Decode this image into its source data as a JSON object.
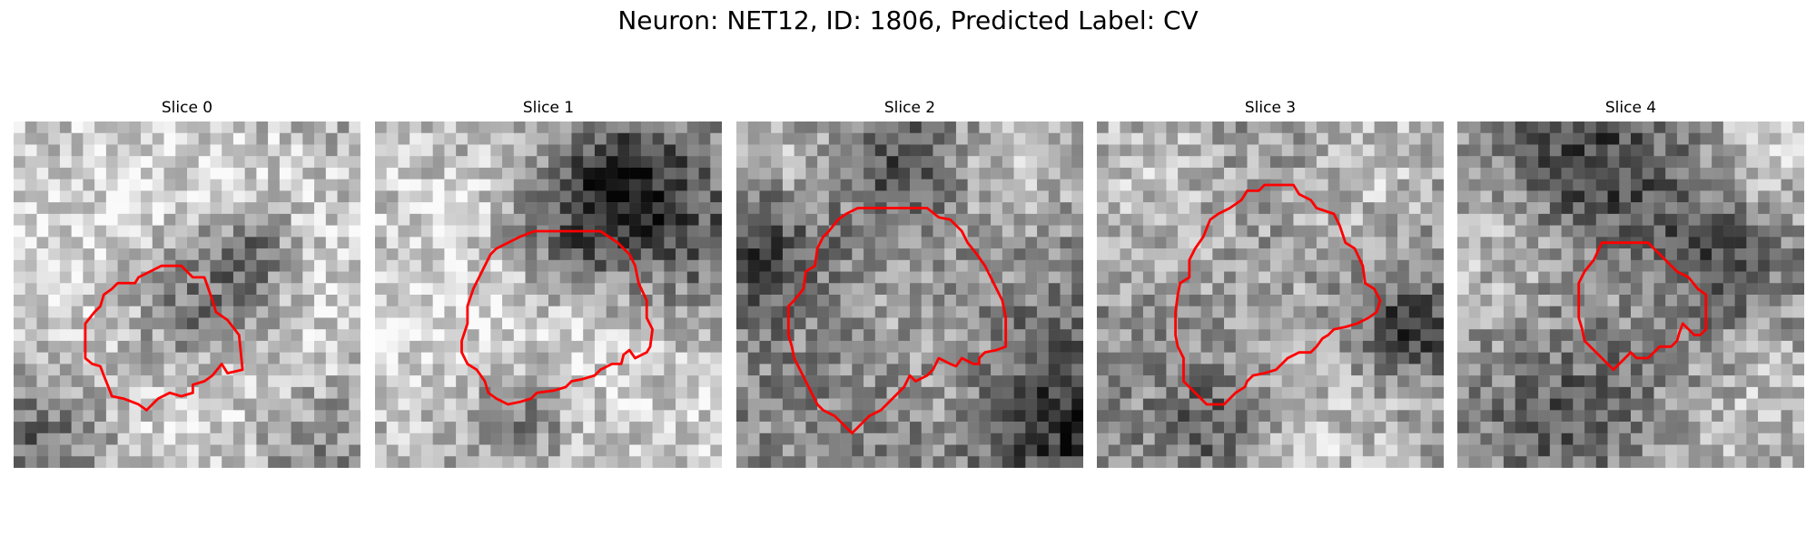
{
  "figure": {
    "title": "Neuron: NET12, ID: 1806, Predicted Label: CV",
    "contour_color": "#ff0000",
    "colormap": "gray",
    "grid_size": 30
  },
  "panels": [
    {
      "title": "Slice 0",
      "tone": "light background, dark granular center, bright lower-right patch",
      "contour": [
        [
          12.8,
          12.5
        ],
        [
          14.5,
          12.5
        ],
        [
          15.5,
          13.5
        ],
        [
          16.5,
          13.5
        ],
        [
          17.2,
          15.5
        ],
        [
          17.5,
          16.5
        ],
        [
          18.5,
          17.2
        ],
        [
          19.5,
          18.5
        ],
        [
          19.8,
          21.5
        ],
        [
          18.5,
          21.8
        ],
        [
          18.0,
          21.0
        ],
        [
          17.2,
          22.0
        ],
        [
          16.5,
          22.5
        ],
        [
          15.5,
          22.8
        ],
        [
          15.5,
          23.5
        ],
        [
          14.5,
          23.8
        ],
        [
          13.5,
          23.5
        ],
        [
          12.5,
          24.0
        ],
        [
          11.5,
          25.0
        ],
        [
          10.8,
          24.5
        ],
        [
          9.5,
          24.0
        ],
        [
          8.5,
          23.8
        ],
        [
          8.2,
          23.0
        ],
        [
          7.8,
          22.0
        ],
        [
          7.5,
          21.2
        ],
        [
          6.8,
          21.0
        ],
        [
          6.2,
          20.5
        ],
        [
          6.2,
          17.5
        ],
        [
          7.0,
          16.5
        ],
        [
          7.5,
          16.0
        ],
        [
          7.8,
          15.0
        ],
        [
          8.5,
          14.5
        ],
        [
          9.0,
          14.0
        ],
        [
          10.5,
          14.0
        ],
        [
          10.8,
          13.5
        ],
        [
          11.8,
          13.0
        ]
      ],
      "light": [
        [
          4,
          7,
          13
        ],
        [
          24,
          24,
          11
        ],
        [
          21,
          10,
          7
        ],
        [
          10,
          24,
          9
        ]
      ],
      "dark": [
        [
          16,
          16,
          5,
          1.0
        ],
        [
          21,
          11,
          3,
          0.7
        ],
        [
          3,
          27,
          6,
          0.7
        ],
        [
          26,
          28,
          5,
          0.5
        ]
      ]
    },
    {
      "title": "Slice 1",
      "tone": "bright rounded body with thin dark rim, dark cluster at top-right",
      "contour": [
        [
          13.8,
          9.5
        ],
        [
          19.5,
          9.5
        ],
        [
          21.0,
          10.5
        ],
        [
          22.0,
          11.5
        ],
        [
          22.5,
          12.5
        ],
        [
          22.8,
          14.0
        ],
        [
          23.5,
          15.5
        ],
        [
          23.5,
          17.0
        ],
        [
          24.0,
          18.0
        ],
        [
          23.8,
          19.5
        ],
        [
          23.5,
          20.0
        ],
        [
          22.5,
          20.5
        ],
        [
          22.0,
          19.8
        ],
        [
          21.5,
          20.2
        ],
        [
          21.3,
          21.0
        ],
        [
          20.5,
          21.0
        ],
        [
          19.5,
          21.5
        ],
        [
          19.0,
          22.0
        ],
        [
          18.0,
          22.3
        ],
        [
          17.0,
          22.5
        ],
        [
          16.5,
          23.0
        ],
        [
          15.5,
          23.3
        ],
        [
          14.0,
          23.5
        ],
        [
          13.5,
          24.0
        ],
        [
          12.5,
          24.3
        ],
        [
          11.5,
          24.5
        ],
        [
          10.5,
          24.0
        ],
        [
          9.8,
          23.5
        ],
        [
          9.5,
          22.5
        ],
        [
          8.8,
          21.5
        ],
        [
          8.0,
          21.0
        ],
        [
          7.5,
          20.0
        ],
        [
          7.5,
          19.0
        ],
        [
          8.0,
          17.5
        ],
        [
          8.0,
          16.0
        ],
        [
          8.5,
          14.5
        ],
        [
          9.0,
          13.5
        ],
        [
          9.5,
          12.5
        ],
        [
          10.0,
          11.5
        ],
        [
          10.5,
          11.0
        ],
        [
          11.5,
          10.5
        ],
        [
          12.5,
          10.0
        ]
      ],
      "light": [
        [
          16,
          16,
          6
        ],
        [
          5,
          7,
          7
        ],
        [
          26,
          27,
          8
        ],
        [
          4,
          22,
          6
        ]
      ],
      "dark": [
        [
          21,
          6,
          4,
          0.8
        ],
        [
          16,
          11,
          4,
          0.5
        ],
        [
          12,
          25,
          3,
          0.5
        ],
        [
          27,
          10,
          5,
          0.4
        ]
      ]
    },
    {
      "title": "Slice 2",
      "tone": "mottled gray disc inside dark ring, dark corners",
      "contour": [
        [
          10.5,
          7.5
        ],
        [
          16.5,
          7.5
        ],
        [
          17.5,
          8.3
        ],
        [
          18.5,
          8.5
        ],
        [
          19.5,
          9.5
        ],
        [
          20.0,
          10.5
        ],
        [
          20.8,
          11.5
        ],
        [
          21.5,
          12.5
        ],
        [
          22.0,
          13.5
        ],
        [
          22.5,
          14.5
        ],
        [
          23.0,
          15.5
        ],
        [
          23.3,
          17.0
        ],
        [
          23.3,
          19.5
        ],
        [
          22.5,
          19.8
        ],
        [
          21.5,
          20.0
        ],
        [
          21.0,
          20.5
        ],
        [
          21.0,
          21.0
        ],
        [
          20.5,
          21.0
        ],
        [
          19.5,
          20.5
        ],
        [
          19.0,
          21.2
        ],
        [
          18.5,
          21.0
        ],
        [
          17.5,
          20.5
        ],
        [
          17.0,
          21.5
        ],
        [
          16.5,
          22.0
        ],
        [
          15.5,
          22.5
        ],
        [
          15.0,
          22.0
        ],
        [
          14.5,
          23.0
        ],
        [
          14.0,
          23.5
        ],
        [
          13.0,
          24.5
        ],
        [
          12.5,
          25.0
        ],
        [
          11.5,
          25.5
        ],
        [
          11.0,
          26.0
        ],
        [
          10.5,
          26.5
        ],
        [
          10.0,
          27.0
        ],
        [
          9.5,
          26.5
        ],
        [
          9.0,
          26.0
        ],
        [
          8.5,
          25.5
        ],
        [
          7.5,
          25.0
        ],
        [
          7.0,
          24.5
        ],
        [
          6.5,
          23.5
        ],
        [
          6.0,
          22.5
        ],
        [
          5.5,
          21.5
        ],
        [
          5.0,
          20.5
        ],
        [
          4.8,
          19.5
        ],
        [
          4.5,
          18.5
        ],
        [
          4.5,
          16.0
        ],
        [
          5.0,
          15.5
        ],
        [
          5.8,
          14.5
        ],
        [
          6.0,
          13.0
        ],
        [
          6.8,
          12.5
        ],
        [
          7.0,
          11.0
        ],
        [
          7.5,
          10.0
        ],
        [
          8.0,
          9.5
        ],
        [
          8.8,
          8.5
        ],
        [
          9.5,
          8.0
        ]
      ],
      "light": [
        [
          14,
          16,
          6
        ],
        [
          24,
          4,
          5
        ],
        [
          4,
          4,
          4
        ],
        [
          22,
          24,
          5
        ]
      ],
      "dark": [
        [
          14,
          16,
          10,
          0.35
        ],
        [
          28,
          26,
          6,
          0.8
        ],
        [
          2,
          10,
          4,
          0.5
        ],
        [
          15,
          4,
          3,
          0.5
        ]
      ]
    },
    {
      "title": "Slice 3",
      "tone": "large pale body bounded by dark membrane ring",
      "contour": [
        [
          14.5,
          5.5
        ],
        [
          17.0,
          5.5
        ],
        [
          17.5,
          6.3
        ],
        [
          18.5,
          6.8
        ],
        [
          19.0,
          7.5
        ],
        [
          20.5,
          8.0
        ],
        [
          21.0,
          9.0
        ],
        [
          21.5,
          10.5
        ],
        [
          22.3,
          11.0
        ],
        [
          23.0,
          12.5
        ],
        [
          23.2,
          14.0
        ],
        [
          24.0,
          14.5
        ],
        [
          24.5,
          15.5
        ],
        [
          24.2,
          16.5
        ],
        [
          23.5,
          17.0
        ],
        [
          22.5,
          17.5
        ],
        [
          21.5,
          17.8
        ],
        [
          20.5,
          18.0
        ],
        [
          20.0,
          18.5
        ],
        [
          19.5,
          18.8
        ],
        [
          19.0,
          19.5
        ],
        [
          18.5,
          20.0
        ],
        [
          17.5,
          20.0
        ],
        [
          16.5,
          20.5
        ],
        [
          16.0,
          21.0
        ],
        [
          15.5,
          21.5
        ],
        [
          14.5,
          21.8
        ],
        [
          13.5,
          22.0
        ],
        [
          13.0,
          22.5
        ],
        [
          12.8,
          23.0
        ],
        [
          12.0,
          23.5
        ],
        [
          11.5,
          24.0
        ],
        [
          11.0,
          24.5
        ],
        [
          9.5,
          24.5
        ],
        [
          9.0,
          24.0
        ],
        [
          8.5,
          23.5
        ],
        [
          8.0,
          23.0
        ],
        [
          7.5,
          22.5
        ],
        [
          7.5,
          21.5
        ],
        [
          7.5,
          20.5
        ],
        [
          7.0,
          19.5
        ],
        [
          6.8,
          18.5
        ],
        [
          6.8,
          16.5
        ],
        [
          7.0,
          15.0
        ],
        [
          7.2,
          14.0
        ],
        [
          8.0,
          13.5
        ],
        [
          8.0,
          12.0
        ],
        [
          8.5,
          11.0
        ],
        [
          9.2,
          10.0
        ],
        [
          9.8,
          8.5
        ],
        [
          10.5,
          8.0
        ],
        [
          11.5,
          7.5
        ],
        [
          12.5,
          6.8
        ],
        [
          13.0,
          6.0
        ],
        [
          14.0,
          6.0
        ]
      ],
      "light": [
        [
          15,
          15,
          8
        ],
        [
          4,
          5,
          6
        ],
        [
          24,
          4,
          5
        ],
        [
          20,
          27,
          7
        ]
      ],
      "dark": [
        [
          15,
          15,
          10,
          0.4
        ],
        [
          27,
          18,
          3,
          0.7
        ],
        [
          10,
          26,
          3,
          0.5
        ]
      ]
    },
    {
      "title": "Slice 4",
      "tone": "small vesicle with dark surround, darker band at top",
      "contour": [
        [
          12.5,
          10.5
        ],
        [
          16.5,
          10.5
        ],
        [
          17.5,
          11.5
        ],
        [
          18.0,
          12.0
        ],
        [
          19.0,
          13.0
        ],
        [
          20.0,
          13.5
        ],
        [
          20.8,
          14.5
        ],
        [
          21.5,
          15.0
        ],
        [
          21.5,
          18.0
        ],
        [
          21.0,
          18.5
        ],
        [
          20.5,
          18.5
        ],
        [
          20.0,
          18.0
        ],
        [
          19.5,
          17.5
        ],
        [
          19.2,
          18.3
        ],
        [
          19.0,
          19.0
        ],
        [
          18.5,
          19.5
        ],
        [
          17.5,
          19.5
        ],
        [
          17.0,
          20.0
        ],
        [
          16.5,
          20.5
        ],
        [
          15.5,
          20.5
        ],
        [
          15.0,
          20.0
        ],
        [
          14.5,
          20.5
        ],
        [
          14.0,
          21.0
        ],
        [
          13.5,
          21.5
        ],
        [
          13.0,
          21.0
        ],
        [
          12.5,
          20.5
        ],
        [
          12.0,
          20.0
        ],
        [
          11.5,
          19.5
        ],
        [
          11.0,
          19.0
        ],
        [
          10.8,
          18.0
        ],
        [
          10.5,
          17.0
        ],
        [
          10.5,
          14.0
        ],
        [
          11.0,
          13.0
        ],
        [
          11.8,
          12.0
        ]
      ],
      "light": [
        [
          5,
          12,
          6
        ],
        [
          16,
          15,
          4
        ],
        [
          25,
          24,
          6
        ],
        [
          27,
          3,
          4
        ]
      ],
      "dark": [
        [
          15,
          16,
          8,
          0.45
        ],
        [
          11,
          3,
          5,
          0.55
        ],
        [
          22,
          12,
          4,
          0.4
        ],
        [
          8,
          27,
          4,
          0.3
        ]
      ]
    }
  ]
}
